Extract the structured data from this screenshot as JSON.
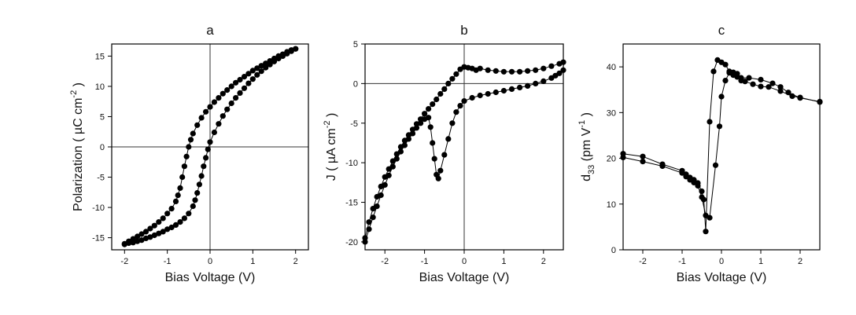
{
  "chart_data": [
    {
      "type": "scatter",
      "panel_label": "a",
      "xlabel": "Bias Voltage (V)",
      "ylabel": "Polarization ( µC cm",
      "ylabel_sup": "-2",
      "ylabel_end": ")",
      "xlim": [
        -2.3,
        2.3
      ],
      "ylim": [
        -17,
        17
      ],
      "xticks": [
        -2,
        -1,
        0,
        1,
        2
      ],
      "yticks": [
        -15,
        -10,
        -5,
        0,
        5,
        10,
        15
      ],
      "zero_lines": true,
      "series": [
        {
          "values": [
            [
              -2.0,
              -16.0
            ],
            [
              -1.9,
              -15.6
            ],
            [
              -1.8,
              -15.2
            ],
            [
              -1.7,
              -14.8
            ],
            [
              -1.6,
              -14.4
            ],
            [
              -1.5,
              -14.0
            ],
            [
              -1.4,
              -13.5
            ],
            [
              -1.3,
              -13.0
            ],
            [
              -1.2,
              -12.4
            ],
            [
              -1.1,
              -11.8
            ],
            [
              -1.0,
              -11.0
            ],
            [
              -0.9,
              -10.2
            ],
            [
              -0.8,
              -9.0
            ],
            [
              -0.75,
              -8.0
            ],
            [
              -0.7,
              -6.8
            ],
            [
              -0.65,
              -5.0
            ],
            [
              -0.6,
              -3.2
            ],
            [
              -0.55,
              -1.6
            ],
            [
              -0.5,
              0.0
            ],
            [
              -0.45,
              1.2
            ],
            [
              -0.4,
              2.2
            ],
            [
              -0.3,
              3.6
            ],
            [
              -0.2,
              4.8
            ],
            [
              -0.1,
              5.8
            ],
            [
              0.0,
              6.6
            ],
            [
              0.1,
              7.4
            ],
            [
              0.2,
              8.1
            ],
            [
              0.3,
              8.8
            ],
            [
              0.4,
              9.4
            ],
            [
              0.5,
              10.0
            ],
            [
              0.6,
              10.6
            ],
            [
              0.7,
              11.1
            ],
            [
              0.8,
              11.6
            ],
            [
              0.9,
              12.1
            ],
            [
              1.0,
              12.6
            ],
            [
              1.1,
              13.0
            ],
            [
              1.2,
              13.4
            ],
            [
              1.3,
              13.8
            ],
            [
              1.4,
              14.2
            ],
            [
              1.5,
              14.6
            ],
            [
              1.6,
              15.0
            ],
            [
              1.7,
              15.3
            ],
            [
              1.8,
              15.7
            ],
            [
              1.9,
              16.0
            ],
            [
              2.0,
              16.2
            ]
          ]
        },
        {
          "values": [
            [
              2.0,
              16.2
            ],
            [
              1.9,
              15.8
            ],
            [
              1.8,
              15.4
            ],
            [
              1.7,
              15.0
            ],
            [
              1.6,
              14.6
            ],
            [
              1.5,
              14.1
            ],
            [
              1.4,
              13.6
            ],
            [
              1.3,
              13.1
            ],
            [
              1.2,
              12.5
            ],
            [
              1.1,
              11.9
            ],
            [
              1.0,
              11.2
            ],
            [
              0.9,
              10.5
            ],
            [
              0.8,
              9.7
            ],
            [
              0.7,
              8.9
            ],
            [
              0.6,
              8.1
            ],
            [
              0.5,
              7.2
            ],
            [
              0.4,
              6.2
            ],
            [
              0.3,
              5.1
            ],
            [
              0.2,
              3.8
            ],
            [
              0.1,
              2.4
            ],
            [
              0.0,
              0.8
            ],
            [
              -0.05,
              -0.4
            ],
            [
              -0.1,
              -1.8
            ],
            [
              -0.15,
              -3.2
            ],
            [
              -0.2,
              -4.8
            ],
            [
              -0.25,
              -6.2
            ],
            [
              -0.3,
              -7.6
            ],
            [
              -0.35,
              -8.8
            ],
            [
              -0.4,
              -9.8
            ],
            [
              -0.5,
              -11.0
            ],
            [
              -0.6,
              -11.8
            ],
            [
              -0.7,
              -12.4
            ],
            [
              -0.8,
              -12.9
            ],
            [
              -0.9,
              -13.3
            ],
            [
              -1.0,
              -13.6
            ],
            [
              -1.1,
              -14.0
            ],
            [
              -1.2,
              -14.3
            ],
            [
              -1.3,
              -14.6
            ],
            [
              -1.4,
              -14.9
            ],
            [
              -1.5,
              -15.1
            ],
            [
              -1.6,
              -15.4
            ],
            [
              -1.7,
              -15.6
            ],
            [
              -1.8,
              -15.8
            ],
            [
              -1.9,
              -15.9
            ],
            [
              -2.0,
              -16.1
            ]
          ]
        }
      ]
    },
    {
      "type": "line",
      "panel_label": "b",
      "xlabel": "Bias Voltage (V)",
      "ylabel": "J ( µA cm",
      "ylabel_sup": "-2",
      "ylabel_end": ")",
      "xlim": [
        -2.5,
        2.5
      ],
      "ylim": [
        -21,
        5
      ],
      "xticks": [
        -2,
        -1,
        0,
        1,
        2
      ],
      "yticks": [
        -20,
        -15,
        -10,
        -5,
        0,
        5
      ],
      "zero_lines": true,
      "series": [
        {
          "values": [
            [
              -2.5,
              -19.5
            ],
            [
              -2.4,
              -17.5
            ],
            [
              -2.3,
              -15.8
            ],
            [
              -2.2,
              -14.3
            ],
            [
              -2.1,
              -13.0
            ],
            [
              -2.0,
              -11.8
            ],
            [
              -1.9,
              -10.8
            ],
            [
              -1.8,
              -9.8
            ],
            [
              -1.7,
              -8.9
            ],
            [
              -1.6,
              -8.0
            ],
            [
              -1.5,
              -7.2
            ],
            [
              -1.4,
              -6.5
            ],
            [
              -1.3,
              -5.8
            ],
            [
              -1.2,
              -5.1
            ],
            [
              -1.1,
              -4.5
            ],
            [
              -1.0,
              -3.8
            ],
            [
              -0.9,
              -3.2
            ],
            [
              -0.8,
              -2.6
            ],
            [
              -0.7,
              -2.0
            ],
            [
              -0.6,
              -1.3
            ],
            [
              -0.5,
              -0.7
            ],
            [
              -0.4,
              0.0
            ],
            [
              -0.3,
              0.6
            ],
            [
              -0.2,
              1.2
            ],
            [
              -0.1,
              1.8
            ],
            [
              0.0,
              2.1
            ],
            [
              0.1,
              2.0
            ],
            [
              0.2,
              1.9
            ],
            [
              0.3,
              1.7
            ],
            [
              0.4,
              1.9
            ],
            [
              0.6,
              1.7
            ],
            [
              0.8,
              1.6
            ],
            [
              1.0,
              1.5
            ],
            [
              1.2,
              1.5
            ],
            [
              1.4,
              1.5
            ],
            [
              1.6,
              1.6
            ],
            [
              1.8,
              1.7
            ],
            [
              2.0,
              1.9
            ],
            [
              2.2,
              2.2
            ],
            [
              2.4,
              2.5
            ],
            [
              2.5,
              2.7
            ]
          ]
        },
        {
          "values": [
            [
              2.5,
              1.7
            ],
            [
              2.4,
              1.3
            ],
            [
              2.3,
              1.0
            ],
            [
              2.2,
              0.7
            ],
            [
              2.0,
              0.3
            ],
            [
              1.8,
              0.0
            ],
            [
              1.6,
              -0.3
            ],
            [
              1.4,
              -0.5
            ],
            [
              1.2,
              -0.7
            ],
            [
              1.0,
              -0.9
            ],
            [
              0.8,
              -1.1
            ],
            [
              0.6,
              -1.3
            ],
            [
              0.4,
              -1.5
            ],
            [
              0.2,
              -1.8
            ],
            [
              0.0,
              -2.2
            ],
            [
              -0.1,
              -2.8
            ],
            [
              -0.2,
              -3.6
            ],
            [
              -0.3,
              -5.0
            ],
            [
              -0.4,
              -7.0
            ],
            [
              -0.5,
              -9.0
            ],
            [
              -0.6,
              -11.0
            ],
            [
              -0.65,
              -12.0
            ],
            [
              -0.7,
              -11.5
            ],
            [
              -0.75,
              -9.5
            ],
            [
              -0.8,
              -7.5
            ],
            [
              -0.85,
              -5.5
            ],
            [
              -0.9,
              -4.3
            ],
            [
              -1.0,
              -4.5
            ],
            [
              -1.1,
              -5.0
            ],
            [
              -1.2,
              -5.6
            ],
            [
              -1.3,
              -6.3
            ],
            [
              -1.4,
              -7.0
            ],
            [
              -1.5,
              -7.8
            ],
            [
              -1.6,
              -8.6
            ],
            [
              -1.7,
              -9.5
            ],
            [
              -1.8,
              -10.5
            ],
            [
              -1.9,
              -11.6
            ],
            [
              -2.0,
              -12.8
            ],
            [
              -2.1,
              -14.1
            ],
            [
              -2.2,
              -15.5
            ],
            [
              -2.3,
              -16.9
            ],
            [
              -2.4,
              -18.4
            ],
            [
              -2.5,
              -20.0
            ]
          ]
        }
      ]
    },
    {
      "type": "line",
      "panel_label": "c",
      "xlabel": "Bias Voltage (V)",
      "ylabel": "d",
      "ylabel_sub": "33",
      "ylabel_mid": "  (pm V",
      "ylabel_sup": "-1",
      "ylabel_end": ")",
      "xlim": [
        -2.5,
        2.5
      ],
      "ylim": [
        0,
        45
      ],
      "xticks": [
        -2,
        -1,
        0,
        1,
        2
      ],
      "yticks": [
        0,
        10,
        20,
        30,
        40
      ],
      "zero_lines": false,
      "series": [
        {
          "values": [
            [
              -2.5,
              20.2
            ],
            [
              -2.0,
              19.3
            ],
            [
              -1.5,
              18.3
            ],
            [
              -1.0,
              16.8
            ],
            [
              -0.9,
              16.0
            ],
            [
              -0.8,
              15.3
            ],
            [
              -0.7,
              14.7
            ],
            [
              -0.6,
              14.6
            ],
            [
              -0.5,
              12.8
            ],
            [
              -0.45,
              11.0
            ],
            [
              -0.4,
              4.0
            ],
            [
              -0.3,
              28.0
            ],
            [
              -0.2,
              39.0
            ],
            [
              -0.1,
              41.5
            ],
            [
              0.0,
              41.0
            ],
            [
              0.1,
              40.5
            ],
            [
              0.2,
              39.0
            ],
            [
              0.3,
              38.8
            ],
            [
              0.4,
              38.5
            ],
            [
              0.5,
              37.6
            ],
            [
              0.7,
              37.6
            ],
            [
              1.0,
              37.2
            ],
            [
              1.3,
              36.4
            ],
            [
              1.5,
              35.6
            ],
            [
              1.7,
              34.4
            ],
            [
              2.0,
              33.2
            ],
            [
              2.5,
              32.4
            ]
          ]
        },
        {
          "values": [
            [
              2.5,
              32.3
            ],
            [
              2.0,
              33.3
            ],
            [
              1.8,
              33.6
            ],
            [
              1.5,
              34.7
            ],
            [
              1.2,
              35.6
            ],
            [
              1.0,
              35.7
            ],
            [
              0.8,
              36.2
            ],
            [
              0.6,
              36.8
            ],
            [
              0.5,
              37.0
            ],
            [
              0.4,
              37.8
            ],
            [
              0.3,
              38.2
            ],
            [
              0.2,
              38.7
            ],
            [
              0.1,
              37.0
            ],
            [
              0.0,
              33.5
            ],
            [
              -0.05,
              27.0
            ],
            [
              -0.15,
              18.5
            ],
            [
              -0.3,
              7.0
            ],
            [
              -0.4,
              7.5
            ],
            [
              -0.5,
              11.5
            ],
            [
              -0.6,
              14.0
            ],
            [
              -0.7,
              15.3
            ],
            [
              -0.8,
              15.8
            ],
            [
              -0.9,
              16.5
            ],
            [
              -1.0,
              17.3
            ],
            [
              -1.5,
              18.7
            ],
            [
              -2.0,
              20.4
            ],
            [
              -2.5,
              21.0
            ]
          ]
        }
      ]
    }
  ]
}
